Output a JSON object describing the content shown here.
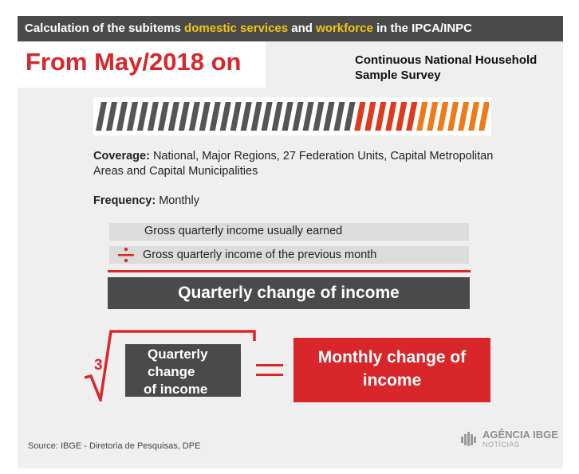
{
  "header": {
    "prefix": "Calculation of the subitems ",
    "highlight1": "domestic services",
    "middle": " and ",
    "highlight2": "workforce",
    "suffix": " in the IPCA/INPC",
    "highlight_color": "#f5c518"
  },
  "period": "From May/2018 on",
  "survey": {
    "line1": "Continuous National Household",
    "line2": "Sample Survey"
  },
  "progress": {
    "total_segments": 38,
    "gray_segments": 25,
    "gray_color": "#555555",
    "red_color": "#e03a1e",
    "orange_color": "#ef7a1a"
  },
  "coverage": {
    "label": "Coverage:",
    "value": " National, Major Regions, 27 Federation Units, Capital Metropolitan Areas and Capital Municipalities"
  },
  "frequency": {
    "label": "Frequency:",
    "value": " Monthly"
  },
  "formula": {
    "numerator": "Gross quarterly income usually earned",
    "denominator": "Gross quarterly income of the previous month",
    "result": "Quarterly change of income",
    "root_index": "3",
    "radicand": [
      "Quarterly",
      "change",
      "of income"
    ],
    "monthly": [
      "Monthly change of",
      "income"
    ]
  },
  "source": "Source: IBGE - Diretoria de Pesquisas, DPE",
  "logo": {
    "main": "AGÊNCIA IBGE",
    "sub": "NOTÍCIAS"
  },
  "colors": {
    "accent_red": "#d9262b",
    "dark_gray": "#4a4a4a",
    "background": "#efefef"
  }
}
